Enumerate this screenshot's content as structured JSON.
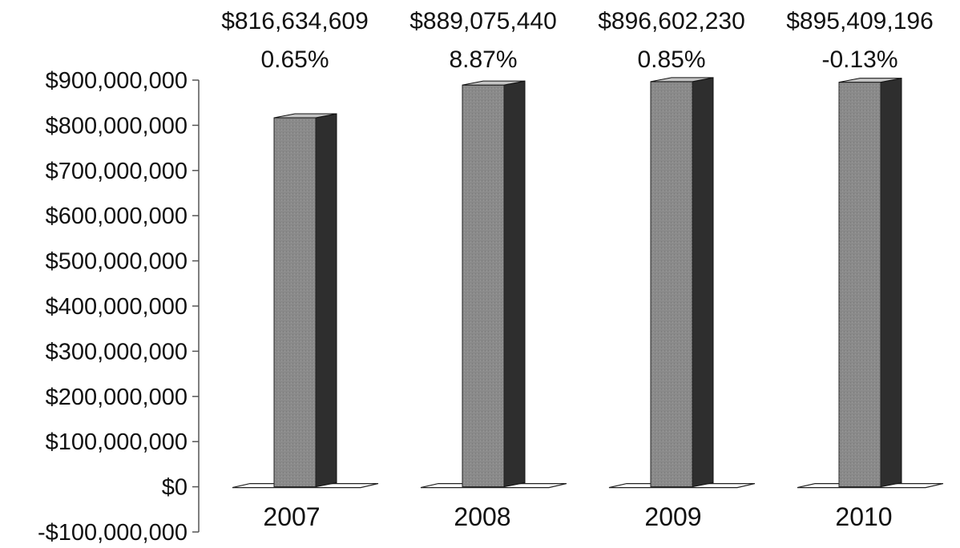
{
  "chart_data": {
    "type": "bar",
    "title": "",
    "xlabel": "",
    "ylabel": "",
    "categories": [
      "2007",
      "2008",
      "2009",
      "2010"
    ],
    "values": [
      816634609,
      889075440,
      896602230,
      895409196
    ],
    "value_labels": [
      "$816,634,609",
      "$889,075,440",
      "$896,602,230",
      "$895,409,196"
    ],
    "percent_labels": [
      "0.65%",
      "8.87%",
      "0.85%",
      "-0.13%"
    ],
    "ylim": [
      -100000000,
      900000000
    ],
    "yticks": [
      900000000,
      800000000,
      700000000,
      600000000,
      500000000,
      400000000,
      300000000,
      200000000,
      100000000,
      0,
      -100000000
    ],
    "ytick_labels": [
      "$900,000,000",
      "$800,000,000",
      "$700,000,000",
      "$600,000,000",
      "$500,000,000",
      "$400,000,000",
      "$300,000,000",
      "$200,000,000",
      "$100,000,000",
      "$0",
      "-$100,000,000"
    ],
    "grid": false,
    "legend": "none",
    "style": "3d",
    "colors": {
      "bar_front": "#8a8a8a",
      "bar_side": "#2e2e2e",
      "bar_top": "#c4c4c4",
      "floor": "#ffffff",
      "axis": "#555555"
    }
  }
}
